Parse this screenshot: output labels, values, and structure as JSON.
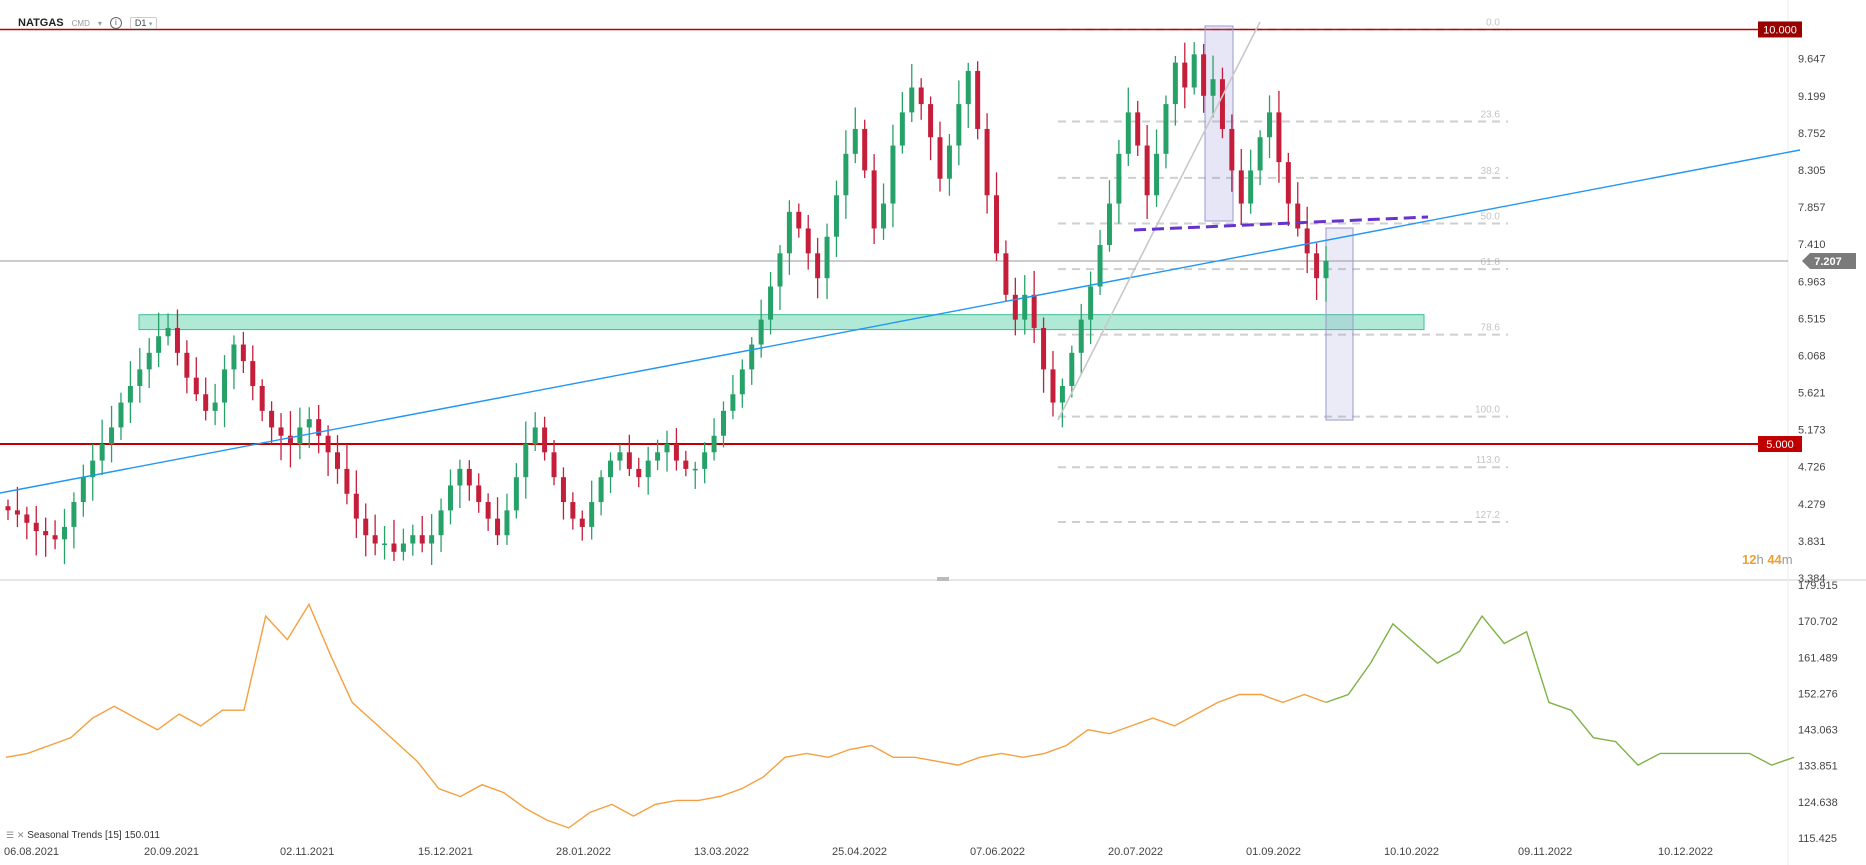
{
  "header": {
    "symbol": "NATGAS",
    "source": "CMD",
    "timeframe": "D1"
  },
  "colors": {
    "bull": "#26a269",
    "bear": "#c41e3a",
    "level": "#c00000",
    "trend": "#2196f3",
    "zone": "#4fd1a5",
    "seasonal_hist": "#f5a040",
    "seasonal_fwd": "#7cb342",
    "neckline": "#6633cc"
  },
  "timer": {
    "h": "12",
    "h_label": "h",
    "m": "44",
    "m_label": "m"
  },
  "indicator_label": "Seasonal  Trends  [15]  150.011",
  "chart_data": [
    {
      "type": "candlestick",
      "title": "NATGAS",
      "price_axis": [
        "9.647",
        "9.199",
        "8.752",
        "8.305",
        "7.857",
        "7.410",
        "6.963",
        "6.515",
        "6.068",
        "5.621",
        "5.173",
        "4.726",
        "4.279",
        "3.831",
        "3.384"
      ],
      "ylim": [
        3.384,
        10.09
      ],
      "current_price": "7.207",
      "levels": [
        {
          "label": "10.000",
          "value": 10.0
        },
        {
          "label": "5.000",
          "value": 5.0
        }
      ],
      "fibonacci": [
        {
          "label": "0.0",
          "value": 10.0
        },
        {
          "label": "23.6",
          "value": 8.89
        },
        {
          "label": "38.2",
          "value": 8.21
        },
        {
          "label": "50.0",
          "value": 7.66
        },
        {
          "label": "61.8",
          "value": 7.11
        },
        {
          "label": "78.6",
          "value": 6.32
        },
        {
          "label": "100.0",
          "value": 5.33
        },
        {
          "label": "113.0",
          "value": 4.72
        },
        {
          "label": "127.2",
          "value": 4.06
        }
      ],
      "support_zone": [
        6.38,
        6.56
      ],
      "x_axis": [
        "06.08.2021",
        "20.09.2021",
        "02.11.2021",
        "15.12.2021",
        "28.01.2022",
        "13.03.2022",
        "25.04.2022",
        "07.06.2022",
        "20.07.2022",
        "01.09.2022",
        "10.10.2022",
        "09.11.2022",
        "10.12.2022"
      ],
      "closes": [
        4.2,
        4.15,
        4.05,
        3.95,
        3.9,
        3.85,
        4.0,
        4.3,
        4.6,
        4.8,
        5.0,
        5.2,
        5.5,
        5.7,
        5.9,
        6.1,
        6.3,
        6.4,
        6.1,
        5.8,
        5.6,
        5.4,
        5.5,
        5.9,
        6.2,
        6.0,
        5.7,
        5.4,
        5.2,
        5.1,
        5.0,
        5.2,
        5.3,
        5.1,
        4.9,
        4.7,
        4.4,
        4.1,
        3.9,
        3.8,
        3.8,
        3.7,
        3.8,
        3.9,
        3.8,
        3.9,
        4.2,
        4.5,
        4.7,
        4.5,
        4.3,
        4.1,
        3.9,
        4.2,
        4.6,
        5.0,
        5.2,
        4.9,
        4.6,
        4.3,
        4.1,
        4.0,
        4.3,
        4.6,
        4.8,
        4.9,
        4.7,
        4.6,
        4.8,
        4.9,
        5.0,
        4.8,
        4.7,
        4.7,
        4.9,
        5.1,
        5.4,
        5.6,
        5.9,
        6.2,
        6.5,
        6.9,
        7.3,
        7.8,
        7.6,
        7.3,
        7.0,
        7.5,
        8.0,
        8.5,
        8.8,
        8.3,
        7.6,
        7.9,
        8.6,
        9.0,
        9.3,
        9.1,
        8.7,
        8.2,
        8.6,
        9.1,
        9.5,
        8.8,
        8.0,
        7.3,
        6.8,
        6.5,
        6.8,
        6.4,
        5.9,
        5.5,
        5.7,
        6.1,
        6.5,
        6.9,
        7.4,
        7.9,
        8.5,
        9.0,
        8.6,
        8.0,
        8.5,
        9.1,
        9.6,
        9.3,
        9.7,
        9.2,
        9.4,
        8.8,
        8.3,
        7.9,
        8.3,
        8.7,
        9.0,
        8.4,
        7.9,
        7.6,
        7.3,
        7.0,
        7.21
      ]
    },
    {
      "type": "line",
      "title": "Seasonal Trends [15]",
      "y_axis": [
        "179.915",
        "170.702",
        "161.489",
        "152.276",
        "143.063",
        "133.851",
        "124.638",
        "115.425"
      ],
      "ylim": [
        115.425,
        179.915
      ],
      "x_axis": [
        "06.08.2021",
        "20.09.2021",
        "02.11.2021",
        "15.12.2021",
        "28.01.2022",
        "13.03.2022",
        "25.04.2022",
        "07.06.2022",
        "20.07.2022",
        "01.09.2022",
        "10.10.2022",
        "09.11.2022",
        "10.12.2022"
      ],
      "historical": [
        136,
        137,
        139,
        141,
        146,
        149,
        146,
        143,
        147,
        144,
        148,
        148,
        172,
        166,
        175,
        162,
        150,
        145,
        140,
        135,
        128,
        126,
        129,
        127,
        123,
        120,
        118,
        122,
        124,
        121,
        124,
        125,
        125,
        126,
        128,
        131,
        136,
        137,
        136,
        138,
        139,
        136,
        136,
        135,
        134,
        136,
        137,
        136,
        137,
        139,
        143,
        142,
        144,
        146,
        144,
        147,
        150,
        152,
        152,
        150,
        152,
        150
      ],
      "projection": [
        150,
        152,
        160,
        170,
        165,
        160,
        163,
        172,
        165,
        168,
        150,
        148,
        141,
        140,
        134,
        137,
        137,
        137,
        137,
        137,
        134,
        136
      ]
    }
  ]
}
